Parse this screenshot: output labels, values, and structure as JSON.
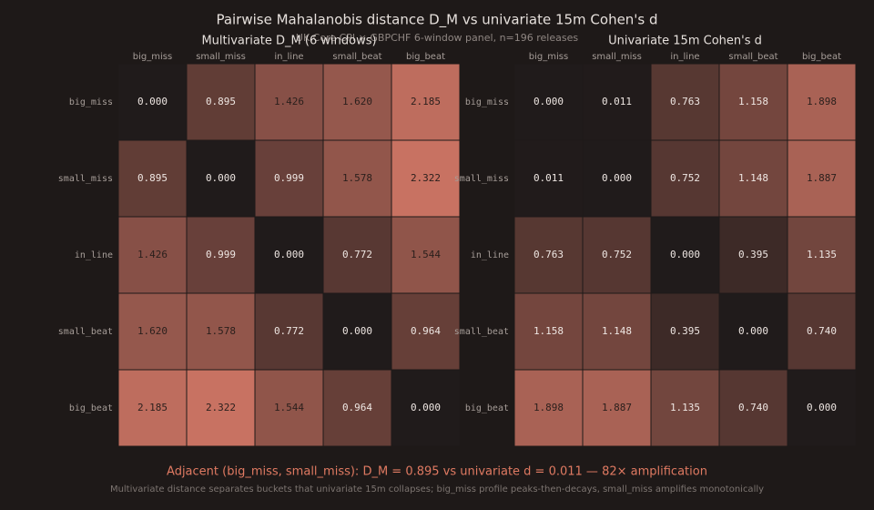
{
  "header": {
    "title": "Pairwise Mahalanobis distance D_M vs univariate 15m Cohen's d",
    "subtitle": "UK Core CPI × GBPCHF 6-window panel, n=196 releases"
  },
  "chart_data": [
    {
      "type": "heatmap",
      "title": "Multivariate D_M (6 windows)",
      "categories": [
        "big_miss",
        "small_miss",
        "in_line",
        "small_beat",
        "big_beat"
      ],
      "row_categories": [
        "big_miss",
        "small_miss",
        "in_line",
        "small_beat",
        "big_beat"
      ],
      "values": [
        [
          0,
          0.895,
          1.426,
          1.62,
          2.185
        ],
        [
          0.895,
          0,
          0.999,
          1.578,
          2.322
        ],
        [
          1.426,
          0.999,
          0,
          0.772,
          1.544
        ],
        [
          1.62,
          1.578,
          0.772,
          0,
          0.964
        ],
        [
          2.185,
          2.322,
          1.544,
          0.964,
          0
        ]
      ],
      "value_labels": [
        [
          "0.000",
          "0.895",
          "1.426",
          "1.620",
          "2.185"
        ],
        [
          "0.895",
          "0.000",
          "0.999",
          "1.578",
          "2.322"
        ],
        [
          "1.426",
          "0.999",
          "0.000",
          "0.772",
          "1.544"
        ],
        [
          "1.620",
          "1.578",
          "0.772",
          "0.000",
          "0.964"
        ],
        [
          "2.185",
          "2.322",
          "1.544",
          "0.964",
          "0.000"
        ]
      ],
      "colors": [
        "#201b1b",
        "#c87262"
      ]
    },
    {
      "type": "heatmap",
      "title": "Univariate 15m Cohen's d",
      "categories": [
        "big_miss",
        "small_miss",
        "in_line",
        "small_beat",
        "big_beat"
      ],
      "row_categories": [
        "big_miss",
        "small_miss",
        "in_line",
        "small_beat",
        "big_beat"
      ],
      "values": [
        [
          0,
          0.011,
          0.763,
          1.158,
          1.898
        ],
        [
          0.011,
          0,
          0.752,
          1.148,
          1.887
        ],
        [
          0.763,
          0.752,
          0,
          0.395,
          1.135
        ],
        [
          1.158,
          1.148,
          0.395,
          0,
          0.74
        ],
        [
          1.898,
          1.887,
          1.135,
          0.74,
          0
        ]
      ],
      "value_labels": [
        [
          "0.000",
          "0.011",
          "0.763",
          "1.158",
          "1.898"
        ],
        [
          "0.011",
          "0.000",
          "0.752",
          "1.148",
          "1.887"
        ],
        [
          "0.763",
          "0.752",
          "0.000",
          "0.395",
          "1.135"
        ],
        [
          "1.158",
          "1.148",
          "0.395",
          "0.000",
          "0.740"
        ],
        [
          "1.898",
          "1.887",
          "1.135",
          "0.740",
          "0.000"
        ]
      ],
      "colors": [
        "#201b1b",
        "#c87262"
      ]
    }
  ],
  "footer": {
    "annotation": "Adjacent (big_miss, small_miss): D_M = 0.895 vs univariate d = 0.011 — 82× amplification",
    "note": "Multivariate distance separates buckets that univariate 15m collapses; big_miss profile peaks-then-decays, small_miss amplifies monotonically"
  }
}
